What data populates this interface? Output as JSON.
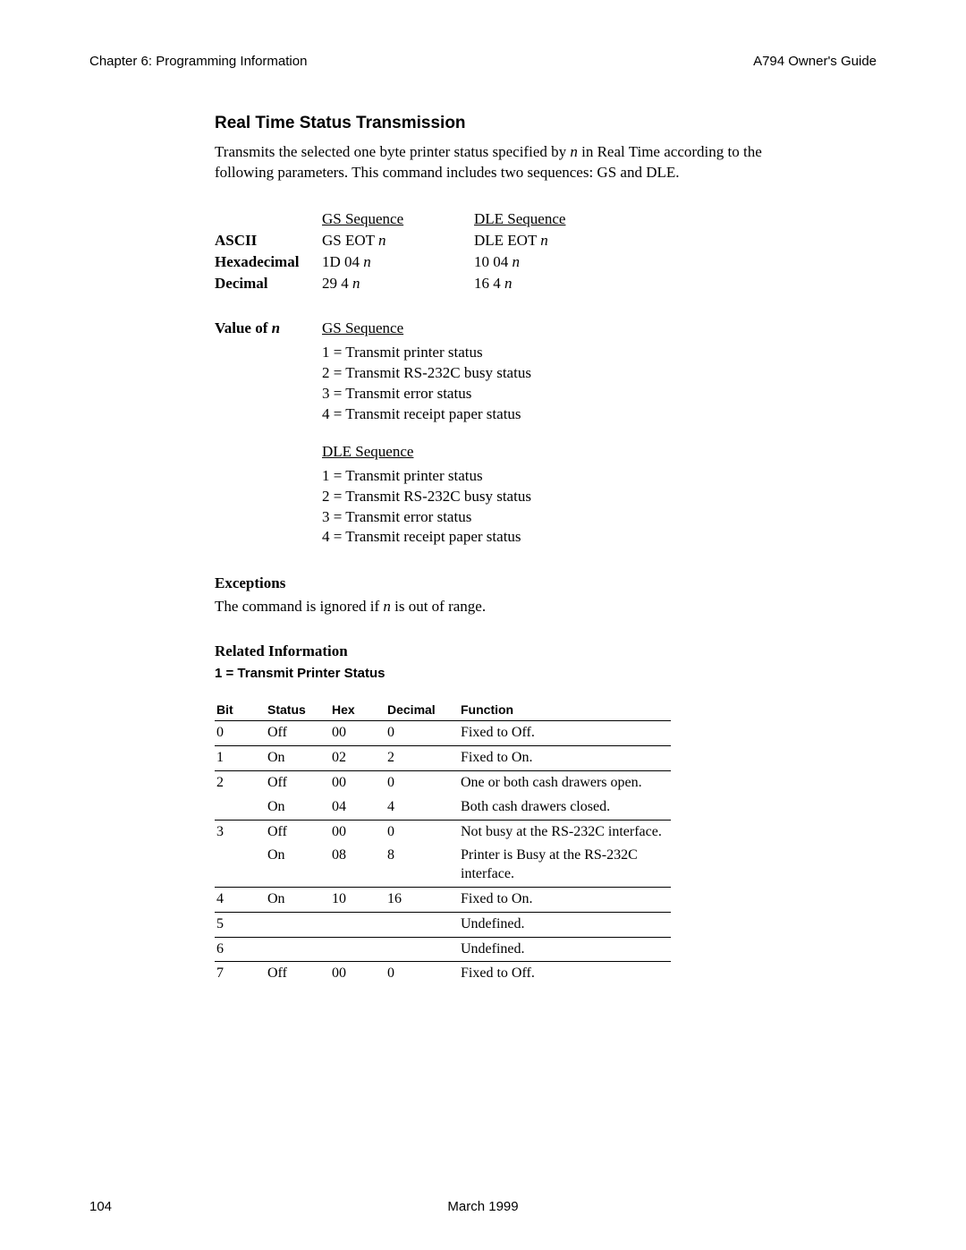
{
  "header": {
    "left": "Chapter 6: Programming Information",
    "right": "A794 Owner's Guide"
  },
  "section": {
    "title": "Real Time Status Transmission",
    "intro_pre": "Transmits the selected one byte printer status specified by ",
    "intro_var": "n",
    "intro_post": " in Real Time according to the following parameters. This command includes two sequences: GS and DLE."
  },
  "seq": {
    "col_gs": "GS Sequence",
    "col_dle": "DLE Sequence",
    "rows_label": {
      "ascii": "ASCII",
      "hex": "Hexadecimal",
      "dec": "Decimal"
    },
    "ascii_gs_pre": "GS EOT ",
    "ascii_dle_pre": "DLE EOT ",
    "hex_gs_pre": "1D 04 ",
    "hex_dle_pre": "10 04 ",
    "dec_gs_pre": "29 4 ",
    "dec_dle_pre": "16 4 ",
    "n": "n"
  },
  "value_of_n": {
    "label_pre": "Value of ",
    "label_var": "n",
    "gs_header": "GS Sequence",
    "dle_header": "DLE Sequence",
    "items": [
      "1 = Transmit printer status",
      "2 = Transmit RS-232C busy status",
      "3 = Transmit error status",
      "4 = Transmit receipt paper status"
    ]
  },
  "exceptions": {
    "heading": "Exceptions",
    "text_pre": "The command is ignored if ",
    "text_var": "n",
    "text_post": " is out of range."
  },
  "related": {
    "heading": "Related Information",
    "sub": "1 = Transmit Printer Status"
  },
  "table": {
    "columns": [
      "Bit",
      "Status",
      "Hex",
      "Decimal",
      "Function"
    ],
    "col_widths": [
      "45px",
      "60px",
      "50px",
      "70px",
      "auto"
    ],
    "rows": [
      {
        "sep": true,
        "cells": [
          "0",
          "Off",
          "00",
          "0",
          "Fixed to Off."
        ]
      },
      {
        "sep": true,
        "cells": [
          "1",
          "On",
          "02",
          "2",
          "Fixed to On."
        ]
      },
      {
        "sep": false,
        "cells": [
          "2",
          "Off",
          "00",
          "0",
          "One or both cash drawers open."
        ]
      },
      {
        "sep": true,
        "cells": [
          "",
          "On",
          "04",
          "4",
          "Both cash drawers closed."
        ]
      },
      {
        "sep": false,
        "cells": [
          "3",
          "Off",
          "00",
          "0",
          "Not busy at the RS-232C interface."
        ]
      },
      {
        "sep": true,
        "cells": [
          "",
          "On",
          "08",
          "8",
          "Printer is Busy at the RS-232C interface."
        ]
      },
      {
        "sep": true,
        "cells": [
          "4",
          "On",
          "10",
          "16",
          "Fixed to On."
        ]
      },
      {
        "sep": true,
        "cells": [
          "5",
          "",
          "",
          "",
          "Undefined."
        ]
      },
      {
        "sep": true,
        "cells": [
          "6",
          "",
          "",
          "",
          "Undefined."
        ]
      },
      {
        "sep": false,
        "cells": [
          "7",
          "Off",
          "00",
          "0",
          "Fixed to Off."
        ]
      }
    ]
  },
  "footer": {
    "page": "104",
    "date": "March 1999"
  }
}
